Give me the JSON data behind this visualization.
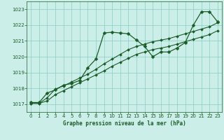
{
  "title": "Graphe pression niveau de la mer (hPa)",
  "background_color": "#cceee8",
  "grid_color": "#88ccc0",
  "line_color": "#1a5c28",
  "xlim": [
    -0.5,
    23.5
  ],
  "ylim": [
    1016.5,
    1023.5
  ],
  "xticks": [
    0,
    1,
    2,
    3,
    4,
    5,
    6,
    7,
    8,
    9,
    10,
    11,
    12,
    13,
    14,
    15,
    16,
    17,
    18,
    19,
    20,
    21,
    22,
    23
  ],
  "yticks": [
    1017,
    1018,
    1019,
    1020,
    1021,
    1022,
    1023
  ],
  "series": [
    {
      "x": [
        0,
        1,
        2,
        3,
        4,
        5,
        6,
        7,
        8,
        9,
        10,
        11,
        12,
        13,
        14,
        15,
        16,
        17,
        18,
        19,
        20,
        21,
        22,
        23
      ],
      "y": [
        1017.1,
        1017.1,
        1017.7,
        1017.9,
        1018.2,
        1018.3,
        1018.5,
        1019.3,
        1019.85,
        1021.5,
        1021.55,
        1021.5,
        1021.45,
        1021.05,
        1020.65,
        1020.0,
        1020.3,
        1020.3,
        1020.55,
        1020.9,
        1022.0,
        1022.85,
        1022.85,
        1022.2
      ],
      "marker": "D",
      "markersize": 2.5,
      "linewidth": 0.9
    },
    {
      "x": [
        0,
        1,
        2,
        3,
        4,
        5,
        6,
        7,
        8,
        9,
        10,
        11,
        12,
        13,
        14,
        15,
        16,
        17,
        18,
        19,
        20,
        21,
        22,
        23
      ],
      "y": [
        1017.05,
        1017.05,
        1017.4,
        1017.95,
        1018.15,
        1018.4,
        1018.65,
        1018.9,
        1019.2,
        1019.55,
        1019.85,
        1020.15,
        1020.45,
        1020.65,
        1020.8,
        1020.95,
        1021.05,
        1021.15,
        1021.3,
        1021.45,
        1021.6,
        1021.75,
        1021.9,
        1022.15
      ],
      "marker": "D",
      "markersize": 2.0,
      "linewidth": 0.8
    },
    {
      "x": [
        0,
        1,
        2,
        3,
        4,
        5,
        6,
        7,
        8,
        9,
        10,
        11,
        12,
        13,
        14,
        15,
        16,
        17,
        18,
        19,
        20,
        21,
        22,
        23
      ],
      "y": [
        1017.05,
        1017.05,
        1017.2,
        1017.6,
        1017.85,
        1018.1,
        1018.35,
        1018.6,
        1018.85,
        1019.1,
        1019.4,
        1019.65,
        1019.9,
        1020.15,
        1020.3,
        1020.45,
        1020.55,
        1020.65,
        1020.8,
        1020.95,
        1021.1,
        1021.25,
        1021.4,
        1021.65
      ],
      "marker": "D",
      "markersize": 2.0,
      "linewidth": 0.8
    }
  ]
}
